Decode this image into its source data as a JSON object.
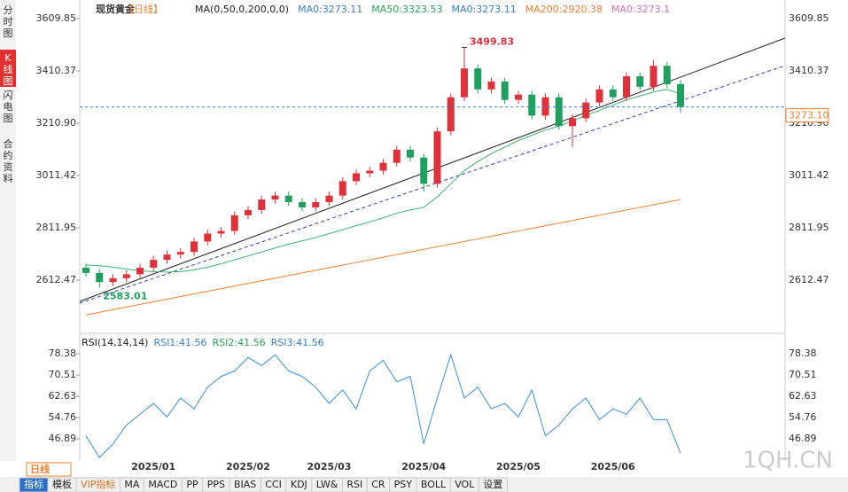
{
  "sidebar": [
    "分时图",
    "K线图",
    "闪电图",
    "合约资料"
  ],
  "header": {
    "title": "现货黄金",
    "period": "【日线】",
    "items": [
      {
        "text": "MA(0,50,0,200,0,0)",
        "color": "#222222"
      },
      {
        "text": "MA0:3273.11",
        "color": "#3a7fd0"
      },
      {
        "text": "MA50:3323.53",
        "color": "#2ca05a"
      },
      {
        "text": "MA0:3273.11",
        "color": "#3a7fd0"
      },
      {
        "text": "MA200:2920.38",
        "color": "#f08030"
      },
      {
        "text": "MA0:3273.1",
        "color": "#d070c0"
      }
    ]
  },
  "chart_data": [
    {
      "type": "candlestick",
      "up_color": "#e0303a",
      "down_color": "#20a060",
      "categories": [
        null,
        null,
        null,
        null,
        null,
        "2025/01",
        null,
        null,
        null,
        null,
        null,
        null,
        "2025/02",
        null,
        null,
        null,
        null,
        null,
        "2025/03",
        null,
        null,
        null,
        null,
        null,
        null,
        "2025/04",
        null,
        null,
        null,
        null,
        null,
        null,
        "2025/05",
        null,
        null,
        null,
        null,
        null,
        null,
        "2025/06",
        null,
        null,
        null,
        null,
        null
      ],
      "open": [
        2660,
        2640,
        2605,
        2620,
        2635,
        2660,
        2690,
        2710,
        2720,
        2760,
        2790,
        2800,
        2860,
        2880,
        2920,
        2935,
        2910,
        2890,
        2910,
        2935,
        2990,
        3020,
        3030,
        3060,
        3110,
        3080,
        2980,
        3180,
        3310,
        3420,
        3340,
        3370,
        3300,
        3320,
        3240,
        3310,
        3200,
        3230,
        3290,
        3340,
        3310,
        3390,
        3350,
        3430,
        3360
      ],
      "high": [
        2675,
        2655,
        2635,
        2650,
        2675,
        2705,
        2725,
        2735,
        2775,
        2805,
        2815,
        2875,
        2895,
        2935,
        2950,
        2950,
        2925,
        2925,
        2950,
        3005,
        3035,
        3045,
        3075,
        3125,
        3125,
        3095,
        3195,
        3325,
        3499.83,
        3435,
        3385,
        3385,
        3335,
        3335,
        3325,
        3325,
        3245,
        3305,
        3355,
        3355,
        3405,
        3405,
        3451.14,
        3445,
        3375
      ],
      "low": [
        2625,
        2583.01,
        2590,
        2605,
        2620,
        2645,
        2675,
        2695,
        2705,
        2745,
        2775,
        2785,
        2845,
        2865,
        2905,
        2895,
        2875,
        2875,
        2895,
        2920,
        2975,
        3005,
        3015,
        3045,
        3065,
        2950,
        2965,
        3165,
        3295,
        3325,
        3325,
        3285,
        3285,
        3225,
        3225,
        3185,
        3120,
        3215,
        3275,
        3295,
        3295,
        3335,
        3335,
        3345,
        3250
      ],
      "close": [
        2640,
        2605,
        2620,
        2635,
        2660,
        2690,
        2710,
        2720,
        2760,
        2790,
        2800,
        2860,
        2880,
        2920,
        2935,
        2910,
        2890,
        2910,
        2935,
        2990,
        3020,
        3030,
        3060,
        3110,
        3080,
        2980,
        3180,
        3310,
        3420,
        3340,
        3370,
        3300,
        3320,
        3240,
        3310,
        3200,
        3230,
        3290,
        3340,
        3310,
        3390,
        3350,
        3430,
        3360,
        3273.1
      ],
      "series": [
        {
          "color": "#3cb371",
          "values": [
            2670,
            2668,
            2662,
            2655,
            2648,
            2645,
            2643,
            2645,
            2652,
            2662,
            2675,
            2690,
            2705,
            2720,
            2735,
            2750,
            2762,
            2775,
            2790,
            2805,
            2820,
            2835,
            2850,
            2868,
            2880,
            2890,
            2930,
            2980,
            3030,
            3065,
            3095,
            3120,
            3145,
            3165,
            3185,
            3200,
            3220,
            3240,
            3260,
            3280,
            3300,
            3315,
            3330,
            3340,
            3323
          ]
        },
        {
          "color": "#f08030",
          "values": [
            2480,
            2490,
            2500,
            2510,
            2520,
            2530,
            2540,
            2550,
            2560,
            2570,
            2580,
            2590,
            2600,
            2610,
            2620,
            2630,
            2640,
            2650,
            2660,
            2670,
            2680,
            2690,
            2700,
            2710,
            2720,
            2730,
            2740,
            2750,
            2760,
            2770,
            2780,
            2790,
            2800,
            2810,
            2820,
            2830,
            2840,
            2850,
            2860,
            2870,
            2880,
            2890,
            2900,
            2910,
            2920
          ]
        }
      ],
      "last_price": {
        "value": 3273.1,
        "label": "3273.10"
      },
      "ylim": [
        2430,
        3664
      ],
      "yticks": [
        3609.85,
        3410.37,
        {
          "value": 3210.9,
          "label": "3210.90"
        },
        3011.42,
        2811.95,
        2612.47
      ]
    },
    {
      "type": "line",
      "legend": [
        {
          "text": "RSI(14,14,14)",
          "color": "#222222"
        },
        {
          "text": "RSI1:41.56",
          "color": "#3a7fd0"
        },
        {
          "text": "RSI2:41.56",
          "color": "#2ca05a"
        },
        {
          "text": "RSI3:41.56",
          "color": "#3a7fd0"
        }
      ],
      "series": [
        {
          "color": "#3a8fe0",
          "values": [
            48,
            40,
            45,
            52,
            56,
            60,
            55,
            62,
            58,
            66,
            70,
            72,
            77,
            74,
            78,
            72,
            70,
            66,
            60,
            65,
            58,
            72,
            76,
            68,
            70,
            45,
            62,
            78,
            62,
            66,
            58,
            60,
            55,
            65,
            48,
            52,
            58,
            62,
            54,
            58,
            56,
            62,
            54,
            54,
            41.56
          ]
        }
      ],
      "ylim": [
        38.7,
        83
      ],
      "yticks": [
        78.38,
        70.51,
        62.63,
        54.76,
        46.89
      ]
    }
  ],
  "toolbar": {
    "period": "日线",
    "tabs": [
      "指标",
      "模板",
      "VIP指标",
      "MA",
      "MACD",
      "PP",
      "PPS",
      "BIAS",
      "CCI",
      "KDJ",
      "LW&",
      "RSI",
      "CR",
      "PSY",
      "BOLL",
      "VOL",
      "设置"
    ]
  },
  "watermark": "1QH.CN"
}
